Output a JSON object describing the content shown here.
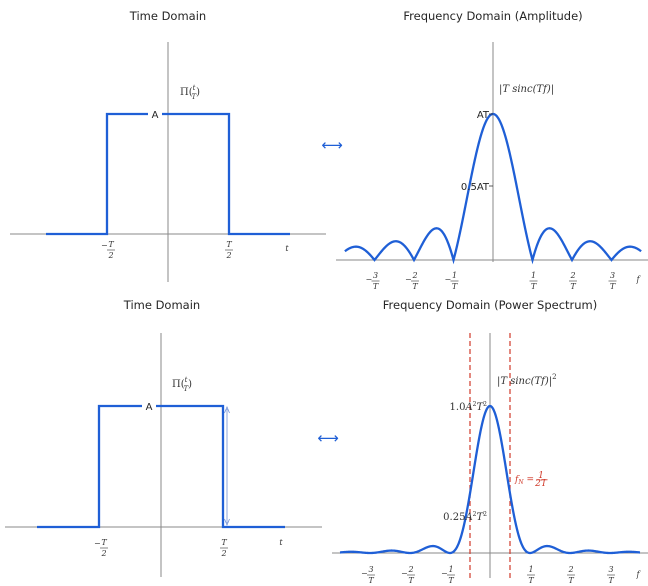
{
  "chart_data": [
    {
      "type": "line",
      "panel": "top-left",
      "title": "Time Domain",
      "function_label": "Π(t/T)",
      "amplitude_label": "A",
      "xlabel": "t",
      "x_ticks": [
        "−T/2",
        "T/2"
      ],
      "series": [
        {
          "x": [
            -1.0,
            -0.5,
            -0.5,
            0.5,
            0.5,
            1.0
          ],
          "y": [
            0,
            0,
            1,
            1,
            0,
            0
          ]
        }
      ],
      "xlim": [
        -1.3,
        1.3
      ],
      "ylim": [
        -0.4,
        1.6
      ]
    },
    {
      "type": "line",
      "panel": "top-right",
      "title": "Frequency Domain (Amplitude)",
      "function_label": "|T sinc(Tf)|",
      "xlabel": "f",
      "x_ticks": [
        "−3/T",
        "−2/T",
        "−1/T",
        "1/T",
        "2/T",
        "3/T"
      ],
      "y_ticks": [
        "AT",
        "0.5AT"
      ],
      "series": [
        {
          "function": "abs_sinc",
          "x_range": [
            -3.75,
            3.75
          ]
        }
      ],
      "xlim": [
        -3.9,
        3.9
      ],
      "ylim": [
        -0.12,
        1.2
      ]
    },
    {
      "type": "line",
      "panel": "bottom-left",
      "title": "Time Domain",
      "function_label": "Π(t/T)",
      "amplitude_label": "A",
      "xlabel": "t",
      "x_ticks": [
        "−T/2",
        "T/2"
      ],
      "series": [
        {
          "x": [
            -1.0,
            -0.5,
            -0.5,
            0.5,
            0.5,
            1.0
          ],
          "y": [
            0,
            0,
            1,
            1,
            0,
            0
          ]
        }
      ],
      "xlim": [
        -1.3,
        1.3
      ],
      "ylim": [
        -0.4,
        1.6
      ]
    },
    {
      "type": "line",
      "panel": "bottom-right",
      "title": "Frequency Domain (Power Spectrum)",
      "function_label": "|T sinc(Tf)|²",
      "xlabel": "f",
      "x_ticks": [
        "−3/T",
        "−2/T",
        "−1/T",
        "1/T",
        "2/T",
        "3/T"
      ],
      "y_ticks": [
        "1.0A²T²",
        "0.25A²T²"
      ],
      "nyquist_label": "f_N = 1/(2T)",
      "nyquist_lines": [
        -0.5,
        0.5
      ],
      "series": [
        {
          "function": "sinc_squared",
          "x_range": [
            -3.75,
            3.75
          ]
        }
      ],
      "xlim": [
        -3.9,
        3.9
      ],
      "ylim": [
        -0.05,
        1.25
      ]
    }
  ],
  "transform_symbol": "⟷",
  "colors": {
    "signal": "#1f5fd6",
    "axis": "#8a8a8a",
    "nyquist": "#d03a2a"
  }
}
